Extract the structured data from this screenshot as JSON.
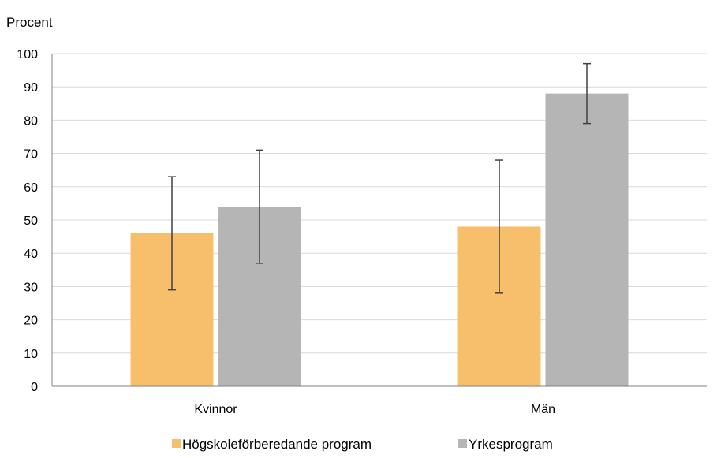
{
  "chart_data": {
    "type": "bar",
    "title": "",
    "xlabel": "",
    "ylabel": "Procent",
    "ylim": [
      0,
      100
    ],
    "y_ticks": [
      0,
      10,
      20,
      30,
      40,
      50,
      60,
      70,
      80,
      90,
      100
    ],
    "grid": true,
    "legend_position": "bottom",
    "categories": [
      "Kvinnor",
      "Män"
    ],
    "series": [
      {
        "name": "Högskoleförberedande program",
        "color": "#F7BF6B",
        "values": [
          46,
          48
        ],
        "error_low": [
          29,
          28
        ],
        "error_high": [
          63,
          68
        ]
      },
      {
        "name": "Yrkesprogram",
        "color": "#B5B5B5",
        "values": [
          54,
          88
        ],
        "error_low": [
          37,
          79
        ],
        "error_high": [
          71,
          97
        ]
      }
    ]
  }
}
